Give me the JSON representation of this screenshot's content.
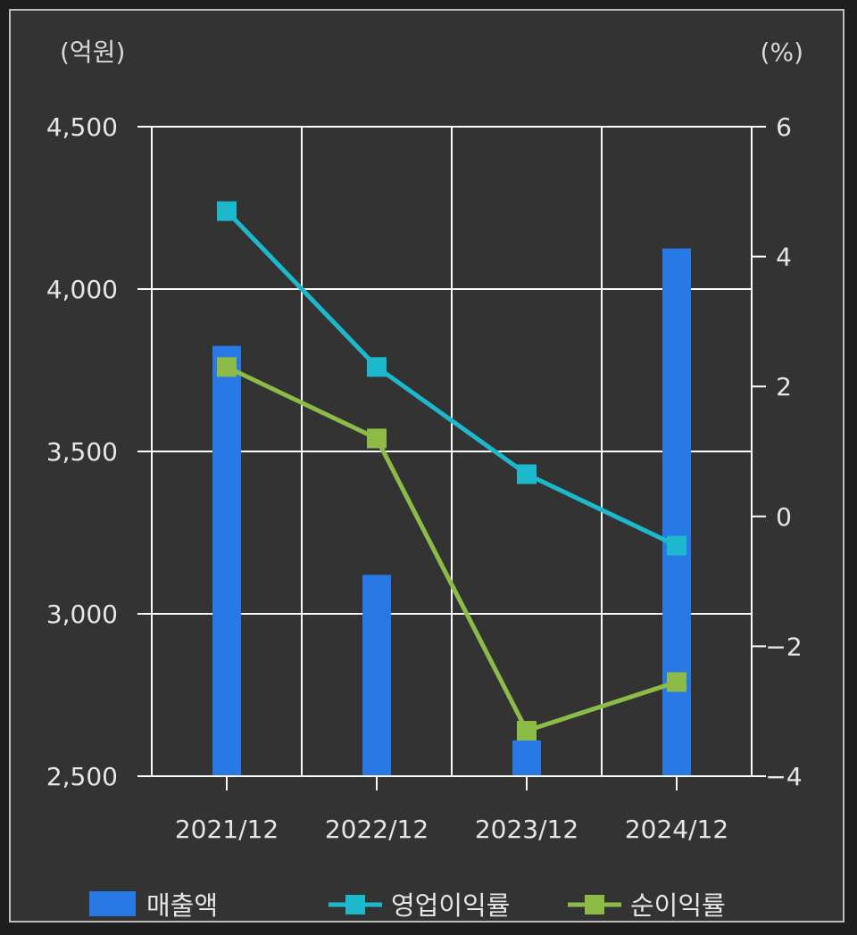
{
  "chart_data": {
    "type": "bar",
    "categories": [
      "2021/12",
      "2022/12",
      "2023/12",
      "2024/12"
    ],
    "y_left": {
      "unit": "(억원)",
      "ylim": [
        2500,
        4500
      ],
      "ticks": [
        2500,
        3000,
        3500,
        4000,
        4500
      ],
      "tick_labels": [
        "2,500",
        "3,000",
        "3,500",
        "4,000",
        "4,500"
      ]
    },
    "y_right": {
      "unit": "(%)",
      "ylim": [
        -4,
        6
      ],
      "ticks": [
        -4,
        -2,
        0,
        2,
        4,
        6
      ],
      "tick_labels": [
        "−4",
        "−2",
        "0",
        "2",
        "4",
        "6"
      ]
    },
    "grid": true,
    "legend_position": "bottom",
    "series": [
      {
        "name": "매출액",
        "kind": "bar",
        "axis": "left",
        "color": "#2878e6",
        "values": [
          3825,
          3120,
          2610,
          4125
        ]
      },
      {
        "name": "영업이익률",
        "kind": "line",
        "axis": "right",
        "color": "#1cb8cc",
        "values": [
          4.7,
          2.3,
          0.65,
          -0.45
        ]
      },
      {
        "name": "순이익률",
        "kind": "line",
        "axis": "right",
        "color": "#8dbb48",
        "values": [
          2.3,
          1.2,
          -3.3,
          -2.55
        ]
      }
    ]
  }
}
